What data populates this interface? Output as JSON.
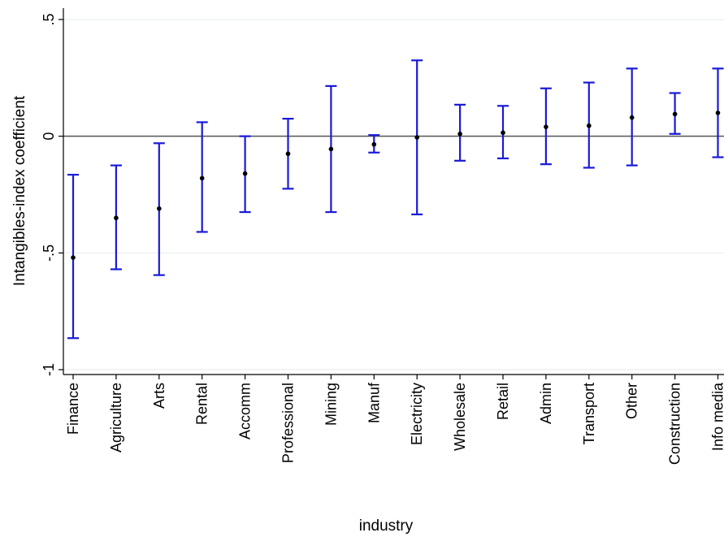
{
  "chart_data": {
    "type": "scatter",
    "subtype": "coefficient-plot-with-error-bars",
    "title": "",
    "xlabel": "industry",
    "ylabel": "Intangibles-index coefficient",
    "ylim": [
      -1.04,
      0.54
    ],
    "y_ticks": [
      {
        "value": 0.5,
        "label": ".5"
      },
      {
        "value": 0,
        "label": "0"
      },
      {
        "value": -0.5,
        "label": "-.5"
      },
      {
        "value": -1,
        "label": "-1"
      }
    ],
    "grid": true,
    "reference_line": 0,
    "categories": [
      "Finance",
      "Agriculture",
      "Arts",
      "Rental",
      "Accomm",
      "Professional",
      "Mining",
      "Manuf",
      "Electricity",
      "Wholesale",
      "Retail",
      "Admin",
      "Transport",
      "Other",
      "Construction",
      "Info media"
    ],
    "series": [
      {
        "values": [
          -0.52,
          -0.35,
          -0.31,
          -0.18,
          -0.16,
          -0.075,
          -0.055,
          -0.035,
          -0.005,
          0.01,
          0.015,
          0.04,
          0.045,
          0.08,
          0.095,
          0.1
        ],
        "lower": [
          -0.865,
          -0.57,
          -0.595,
          -0.41,
          -0.325,
          -0.225,
          -0.325,
          -0.07,
          -0.335,
          -0.105,
          -0.095,
          -0.12,
          -0.135,
          -0.125,
          0.01,
          -0.09
        ],
        "upper": [
          -0.165,
          -0.125,
          -0.03,
          0.06,
          0.0,
          0.075,
          0.215,
          0.005,
          0.325,
          0.135,
          0.13,
          0.205,
          0.23,
          0.29,
          0.185,
          0.29
        ]
      }
    ],
    "colors": {
      "error_bar": "#1a1ad6",
      "point": "#000000",
      "reference_line": "#555555",
      "grid": "#e8edf2",
      "axis": "#000000"
    }
  }
}
